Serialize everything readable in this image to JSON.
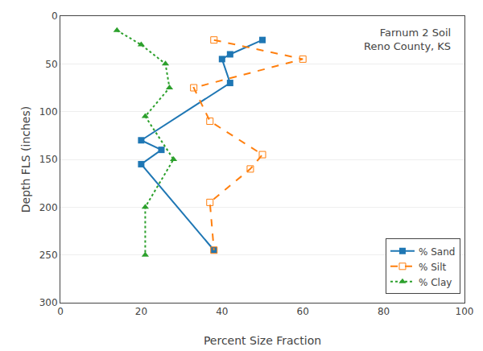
{
  "chart_data": {
    "type": "line",
    "title": "Farnum 2 Soil\nReno County, KS",
    "xlabel": "Percent Size Fraction",
    "ylabel": "Depth FLS (inches)",
    "xlim": [
      0,
      100
    ],
    "ylim": [
      300,
      0
    ],
    "xticks": [
      0,
      20,
      40,
      60,
      80,
      100
    ],
    "yticks": [
      0,
      50,
      100,
      150,
      200,
      250,
      300
    ],
    "grid": "y",
    "legend": "lower right",
    "series": [
      {
        "name": "% Sand",
        "line_style": "solid",
        "marker": "square",
        "x": [
          50,
          42,
          40,
          42,
          20,
          25,
          20,
          38
        ],
        "values": [
          25,
          40,
          45,
          70,
          130,
          140,
          155,
          245
        ]
      },
      {
        "name": "% Silt",
        "line_style": "dashed",
        "marker": "square-open",
        "x": [
          38,
          60,
          33,
          37,
          50,
          47,
          37,
          38
        ],
        "values": [
          25,
          45,
          75,
          110,
          145,
          160,
          195,
          245
        ]
      },
      {
        "name": "% Clay",
        "line_style": "dotted",
        "marker": "triangle-up",
        "x": [
          14,
          20,
          26,
          27,
          21,
          28,
          21,
          21
        ],
        "values": [
          15,
          30,
          50,
          75,
          105,
          150,
          200,
          250
        ]
      }
    ]
  }
}
